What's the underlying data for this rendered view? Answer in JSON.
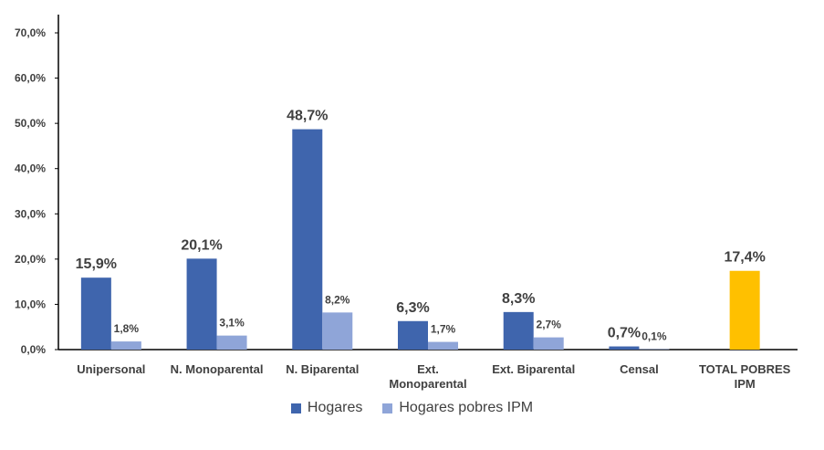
{
  "chart_data": {
    "type": "bar",
    "categories": [
      [
        "Unipersonal"
      ],
      [
        "N. Monoparental"
      ],
      [
        "N. Biparental"
      ],
      [
        "Ext.",
        "Monoparental"
      ],
      [
        "Ext. Biparental"
      ],
      [
        "Censal"
      ],
      [
        "TOTAL POBRES",
        "IPM"
      ]
    ],
    "series": [
      {
        "name": "Hogares",
        "color": "#3F65AD",
        "values": [
          15.9,
          20.1,
          48.7,
          6.3,
          8.3,
          0.7,
          null
        ],
        "labels": [
          "15,9%",
          "20,1%",
          "48,7%",
          "6,3%",
          "8,3%",
          "0,7%",
          ""
        ]
      },
      {
        "name": "Hogares pobres IPM",
        "color": "#8FA5D8",
        "values": [
          1.8,
          3.1,
          8.2,
          1.7,
          2.7,
          0.1,
          null
        ],
        "labels": [
          "1,8%",
          "3,1%",
          "8,2%",
          "1,7%",
          "2,7%",
          "0,1%",
          ""
        ]
      }
    ],
    "total": {
      "value": 17.4,
      "label": "17,4%",
      "color": "#FFC000"
    },
    "ylim": [
      0,
      70
    ],
    "yticks": [
      0,
      10,
      20,
      30,
      40,
      50,
      60,
      70
    ],
    "ytick_labels": [
      "0,0%",
      "10,0%",
      "20,0%",
      "30,0%",
      "40,0%",
      "50,0%",
      "60,0%",
      "70,0%"
    ],
    "grid": false,
    "legend_position": "bottom"
  }
}
